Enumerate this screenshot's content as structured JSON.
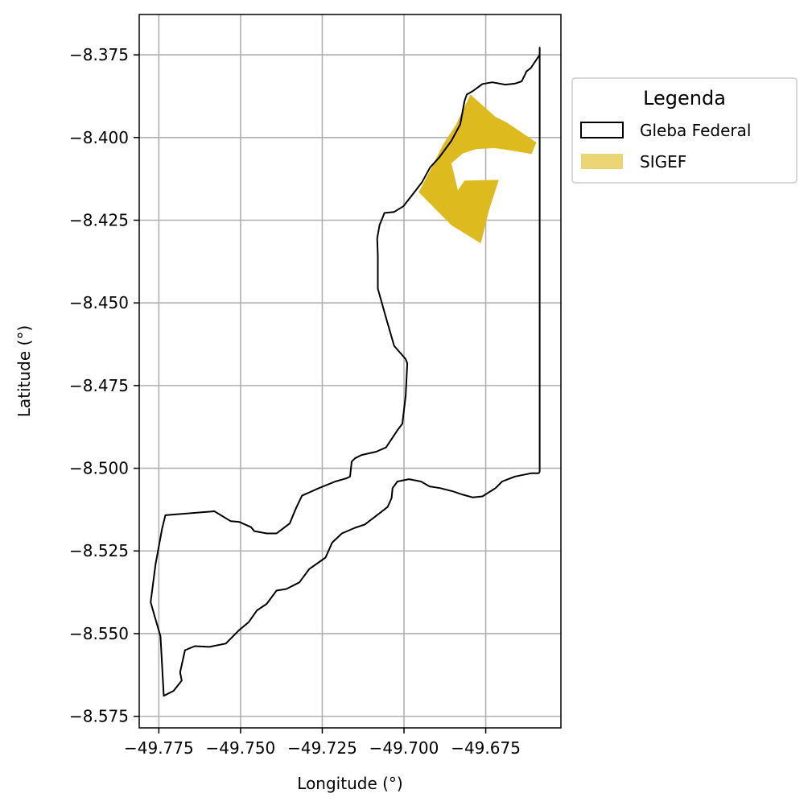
{
  "chart_data": {
    "type": "map",
    "xlabel": "Longitude (°)",
    "ylabel": "Latitude (°)",
    "xlim": [
      -49.781,
      -49.652
    ],
    "ylim": [
      -8.5785,
      -8.3628
    ],
    "grid": true,
    "xticks": [
      -49.775,
      -49.75,
      -49.725,
      -49.7,
      -49.675
    ],
    "xtick_labels": [
      "−49.775",
      "−49.750",
      "−49.725",
      "−49.700",
      "−49.675"
    ],
    "yticks": [
      -8.375,
      -8.4,
      -8.425,
      -8.45,
      -8.475,
      -8.5,
      -8.525,
      -8.55,
      -8.575
    ],
    "ytick_labels": [
      "−8.375",
      "−8.400",
      "−8.425",
      "−8.450",
      "−8.475",
      "−8.500",
      "−8.525",
      "−8.550",
      "−8.575"
    ],
    "legend": {
      "title": "Legenda",
      "position": "outside-upper-right",
      "entries": [
        {
          "label": "Gleba Federal",
          "style": "outline",
          "color": "#000000"
        },
        {
          "label": "SIGEF",
          "style": "fill",
          "color": "#ddbb1e",
          "legend_color": "#ebd574"
        }
      ]
    },
    "series": [
      {
        "name": "Gleba Federal",
        "geometry": "polygon",
        "stroke": "#000000",
        "fill": "none",
        "coordinates": [
          [
            -49.6585,
            -8.3728
          ],
          [
            -49.6585,
            -8.375
          ],
          [
            -49.6612,
            -8.379
          ],
          [
            -49.6625,
            -8.38
          ],
          [
            -49.664,
            -8.383
          ],
          [
            -49.666,
            -8.3837
          ],
          [
            -49.669,
            -8.384
          ],
          [
            -49.673,
            -8.3833
          ],
          [
            -49.676,
            -8.3838
          ],
          [
            -49.679,
            -8.386
          ],
          [
            -49.6808,
            -8.387
          ],
          [
            -49.6815,
            -8.389
          ],
          [
            -49.6828,
            -8.396
          ],
          [
            -49.6855,
            -8.401
          ],
          [
            -49.6892,
            -8.406
          ],
          [
            -49.692,
            -8.409
          ],
          [
            -49.6945,
            -8.4135
          ],
          [
            -49.6972,
            -8.417
          ],
          [
            -49.7002,
            -8.4208
          ],
          [
            -49.703,
            -8.4225
          ],
          [
            -49.706,
            -8.4228
          ],
          [
            -49.7075,
            -8.4265
          ],
          [
            -49.7082,
            -8.4305
          ],
          [
            -49.708,
            -8.4358
          ],
          [
            -49.708,
            -8.4457
          ],
          [
            -49.7055,
            -8.4545
          ],
          [
            -49.703,
            -8.463
          ],
          [
            -49.701,
            -8.4653
          ],
          [
            -49.6995,
            -8.467
          ],
          [
            -49.699,
            -8.4683
          ],
          [
            -49.6995,
            -8.478
          ],
          [
            -49.7005,
            -8.4865
          ],
          [
            -49.702,
            -8.4885
          ],
          [
            -49.7055,
            -8.4937
          ],
          [
            -49.7085,
            -8.495
          ],
          [
            -49.713,
            -8.496
          ],
          [
            -49.715,
            -8.497
          ],
          [
            -49.716,
            -8.498
          ],
          [
            -49.7165,
            -8.5025
          ],
          [
            -49.7175,
            -8.503
          ],
          [
            -49.721,
            -8.504
          ],
          [
            -49.726,
            -8.506
          ],
          [
            -49.7312,
            -8.5083
          ],
          [
            -49.733,
            -8.512
          ],
          [
            -49.735,
            -8.5167
          ],
          [
            -49.739,
            -8.5197
          ],
          [
            -49.742,
            -8.5197
          ],
          [
            -49.7458,
            -8.519
          ],
          [
            -49.7468,
            -8.5178
          ],
          [
            -49.7505,
            -8.5162
          ],
          [
            -49.753,
            -8.516
          ],
          [
            -49.758,
            -8.513
          ],
          [
            -49.773,
            -8.5142
          ],
          [
            -49.774,
            -8.5183
          ],
          [
            -49.776,
            -8.529
          ],
          [
            -49.7775,
            -8.5405
          ],
          [
            -49.7765,
            -8.544
          ],
          [
            -49.7745,
            -8.5508
          ],
          [
            -49.7735,
            -8.5688
          ],
          [
            -49.7705,
            -8.5673
          ],
          [
            -49.768,
            -8.5642
          ],
          [
            -49.7685,
            -8.5617
          ],
          [
            -49.767,
            -8.555
          ],
          [
            -49.764,
            -8.5538
          ],
          [
            -49.7595,
            -8.554
          ],
          [
            -49.758,
            -8.5537
          ],
          [
            -49.7545,
            -8.553
          ],
          [
            -49.7505,
            -8.549
          ],
          [
            -49.7475,
            -8.5465
          ],
          [
            -49.745,
            -8.543
          ],
          [
            -49.742,
            -8.541
          ],
          [
            -49.739,
            -8.537
          ],
          [
            -49.736,
            -8.5365
          ],
          [
            -49.732,
            -8.5345
          ],
          [
            -49.729,
            -8.5305
          ],
          [
            -49.724,
            -8.527
          ],
          [
            -49.722,
            -8.5225
          ],
          [
            -49.719,
            -8.5197
          ],
          [
            -49.715,
            -8.518
          ],
          [
            -49.712,
            -8.517
          ],
          [
            -49.708,
            -8.514
          ],
          [
            -49.705,
            -8.5117
          ],
          [
            -49.7038,
            -8.509
          ],
          [
            -49.7035,
            -8.506
          ],
          [
            -49.702,
            -8.504
          ],
          [
            -49.6985,
            -8.5033
          ],
          [
            -49.6948,
            -8.504
          ],
          [
            -49.6922,
            -8.5055
          ],
          [
            -49.689,
            -8.506
          ],
          [
            -49.685,
            -8.507
          ],
          [
            -49.682,
            -8.508
          ],
          [
            -49.679,
            -8.5088
          ],
          [
            -49.676,
            -8.5085
          ],
          [
            -49.672,
            -8.506
          ],
          [
            -49.67,
            -8.504
          ],
          [
            -49.666,
            -8.5025
          ],
          [
            -49.661,
            -8.5015
          ],
          [
            -49.6588,
            -8.5015
          ],
          [
            -49.6585,
            -8.501
          ],
          [
            -49.6585,
            -8.3728
          ]
        ]
      },
      {
        "name": "SIGEF",
        "geometry": "polygon",
        "fill": "#ddbb1e",
        "coordinates": [
          [
            -49.6797,
            -8.387
          ],
          [
            -49.672,
            -8.3938
          ],
          [
            -49.6685,
            -8.3955
          ],
          [
            -49.6595,
            -8.4015
          ],
          [
            -49.661,
            -8.405
          ],
          [
            -49.668,
            -8.4038
          ],
          [
            -49.6725,
            -8.4032
          ],
          [
            -49.678,
            -8.4035
          ],
          [
            -49.682,
            -8.4048
          ],
          [
            -49.6855,
            -8.4078
          ],
          [
            -49.6835,
            -8.416
          ],
          [
            -49.6815,
            -8.413
          ],
          [
            -49.671,
            -8.4128
          ],
          [
            -49.674,
            -8.422
          ],
          [
            -49.6765,
            -8.432
          ],
          [
            -49.6855,
            -8.4265
          ],
          [
            -49.6955,
            -8.4165
          ],
          [
            -49.6915,
            -8.409
          ],
          [
            -49.688,
            -8.402
          ],
          [
            -49.684,
            -8.396
          ]
        ]
      }
    ]
  }
}
